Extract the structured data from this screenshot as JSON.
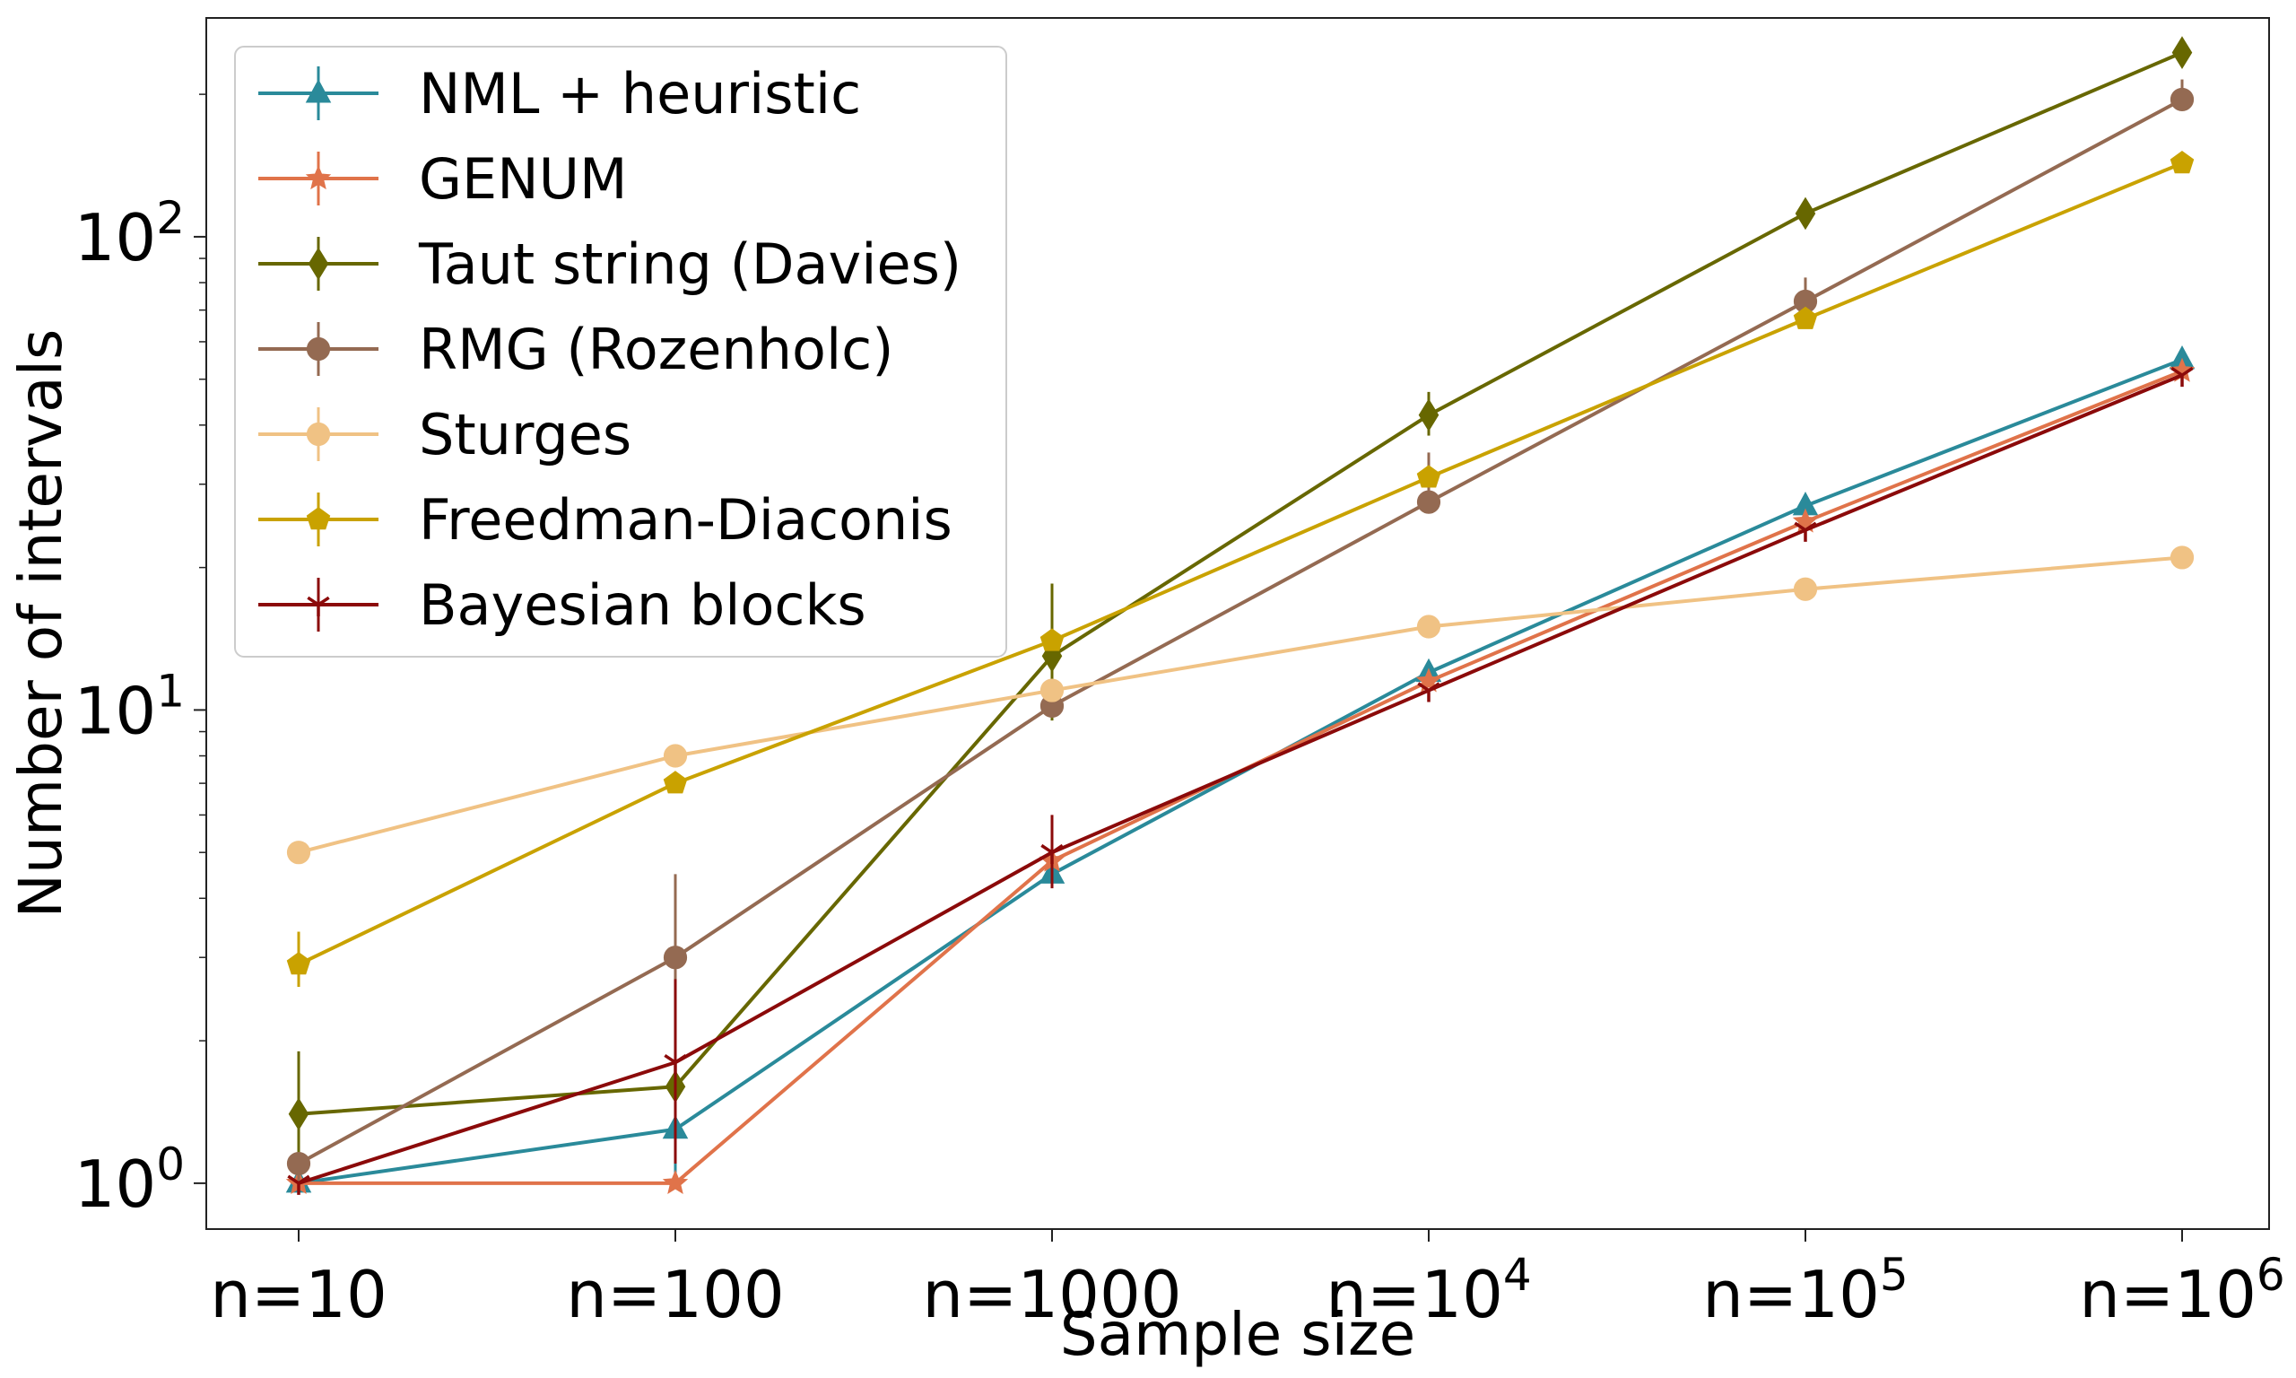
{
  "chart_data": {
    "type": "line",
    "title": "",
    "xlabel": "Sample size",
    "ylabel": "Number of intervals",
    "yscale": "log",
    "ylim": [
      0.8,
      290
    ],
    "grid": false,
    "legend_position": "top-left",
    "categories": [
      {
        "base": "n=10",
        "sup": ""
      },
      {
        "base": "n=100",
        "sup": ""
      },
      {
        "base": "n=1000",
        "sup": ""
      },
      {
        "base": "n=10",
        "sup": "4"
      },
      {
        "base": "n=10",
        "sup": "5"
      },
      {
        "base": "n=10",
        "sup": "6"
      }
    ],
    "y_ticks": [
      {
        "value": 1,
        "base": "10",
        "sup": "0"
      },
      {
        "value": 10,
        "base": "10",
        "sup": "1"
      },
      {
        "value": 100,
        "base": "10",
        "sup": "2"
      }
    ],
    "series": [
      {
        "name": "NML + heuristic",
        "color": "#2a8a9a",
        "marker": "triangle",
        "values": [
          1.0,
          1.3,
          4.5,
          12.0,
          27.0,
          55.0
        ],
        "err_low": [
          1.0,
          1.0,
          4.5,
          12.0,
          27.0,
          55.0
        ],
        "err_high": [
          1.0,
          1.6,
          4.5,
          12.0,
          27.0,
          55.0
        ]
      },
      {
        "name": "GENUM",
        "color": "#e0734a",
        "marker": "star",
        "values": [
          1.0,
          1.0,
          4.8,
          11.5,
          25.0,
          52.0
        ],
        "err_low": [
          1.0,
          1.0,
          4.8,
          11.5,
          25.0,
          52.0
        ],
        "err_high": [
          1.0,
          1.0,
          4.8,
          11.5,
          25.0,
          52.0
        ]
      },
      {
        "name": "Taut string (Davies)",
        "color": "#676700",
        "marker": "diamond",
        "values": [
          1.4,
          1.6,
          13.0,
          42.0,
          112.0,
          245.0
        ],
        "err_low": [
          1.0,
          1.6,
          9.5,
          38.0,
          108.0,
          245.0
        ],
        "err_high": [
          1.9,
          1.6,
          18.5,
          47.0,
          116.0,
          245.0
        ]
      },
      {
        "name": "RMG (Rozenholc)",
        "color": "#946a52",
        "marker": "circle",
        "values": [
          1.1,
          3.0,
          10.2,
          27.5,
          73.0,
          195.0
        ],
        "err_low": [
          1.0,
          2.0,
          10.2,
          27.5,
          68.0,
          195.0
        ],
        "err_high": [
          1.1,
          4.5,
          10.2,
          35.0,
          82.0,
          215.0
        ]
      },
      {
        "name": "Sturges",
        "color": "#f0c284",
        "marker": "circle",
        "values": [
          5.0,
          8.0,
          11.0,
          15.0,
          18.0,
          21.0
        ],
        "err_low": [
          5.0,
          8.0,
          11.0,
          15.0,
          18.0,
          21.0
        ],
        "err_high": [
          5.0,
          8.0,
          11.0,
          15.0,
          18.0,
          21.0
        ]
      },
      {
        "name": "Freedman-Diaconis",
        "color": "#c9a200",
        "marker": "pentagon",
        "values": [
          2.9,
          7.0,
          14.0,
          31.0,
          67.0,
          143.0
        ],
        "err_low": [
          2.6,
          7.0,
          14.0,
          31.0,
          67.0,
          143.0
        ],
        "err_high": [
          3.4,
          7.0,
          14.0,
          31.0,
          67.0,
          143.0
        ]
      },
      {
        "name": "Bayesian blocks",
        "color": "#8b0a0a",
        "marker": "tri",
        "values": [
          1.0,
          1.8,
          5.0,
          11.0,
          24.0,
          51.0
        ],
        "err_low": [
          1.0,
          1.1,
          4.2,
          11.0,
          24.0,
          51.0
        ],
        "err_high": [
          1.0,
          2.7,
          6.0,
          11.0,
          24.0,
          51.0
        ]
      }
    ]
  }
}
